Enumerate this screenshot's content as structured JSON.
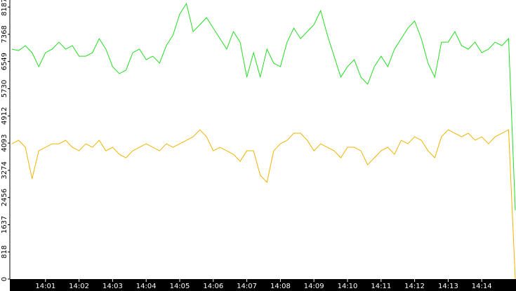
{
  "chart_data": {
    "type": "line",
    "categories": [
      null,
      null,
      null,
      null,
      null,
      "14:01",
      null,
      null,
      null,
      null,
      "14:02",
      null,
      null,
      null,
      null,
      "14:03",
      null,
      null,
      null,
      null,
      "14:04",
      null,
      null,
      null,
      null,
      "14:05",
      null,
      null,
      null,
      null,
      "14:06",
      null,
      null,
      null,
      null,
      "14:07",
      null,
      null,
      null,
      null,
      "14:08",
      null,
      null,
      null,
      null,
      "14:09",
      null,
      null,
      null,
      null,
      "14:10",
      null,
      null,
      null,
      null,
      "14:11",
      null,
      null,
      null,
      null,
      "14:12",
      null,
      null,
      null,
      null,
      "14:13",
      null,
      null,
      null,
      null,
      "14:14",
      null,
      null,
      null,
      null,
      null
    ],
    "series": [
      {
        "color": "#22dd22",
        "values": [
          6921,
          6879,
          7026,
          6815,
          6394,
          6815,
          6921,
          7132,
          6921,
          7026,
          6710,
          6710,
          6815,
          7237,
          6921,
          6394,
          6183,
          6288,
          6815,
          6921,
          6604,
          6710,
          6499,
          7026,
          7343,
          7976,
          8292,
          7448,
          7659,
          7870,
          7554,
          7237,
          6921,
          7448,
          7132,
          6077,
          6815,
          6077,
          6921,
          6499,
          6394,
          7132,
          7554,
          7237,
          7448,
          7659,
          8081,
          7343,
          6710,
          6077,
          6394,
          6604,
          6077,
          5866,
          6394,
          6710,
          6394,
          6921,
          7237,
          7554,
          7765,
          7237,
          6499,
          6077,
          7132,
          7132,
          7448,
          7026,
          6921,
          7132,
          6815,
          6921,
          7132,
          7026,
          7237,
          2068
        ]
      },
      {
        "color": "#f0b400",
        "values": [
          4072,
          4178,
          3967,
          3017,
          3861,
          3967,
          4072,
          4072,
          4178,
          3967,
          3861,
          4072,
          3967,
          4178,
          3861,
          3967,
          3756,
          3651,
          3861,
          3967,
          4072,
          3967,
          3861,
          4072,
          3967,
          4072,
          4178,
          4283,
          4494,
          4283,
          3861,
          3967,
          3861,
          3756,
          3545,
          3861,
          3861,
          3123,
          2912,
          3861,
          4072,
          4178,
          4389,
          4389,
          4178,
          3861,
          4072,
          3967,
          3861,
          3651,
          3967,
          3967,
          3861,
          3439,
          3651,
          3861,
          3967,
          3756,
          4178,
          4072,
          4283,
          4178,
          3861,
          3651,
          4283,
          4494,
          4389,
          4283,
          4389,
          4178,
          4283,
          4072,
          4283,
          4389,
          4494,
          0
        ]
      }
    ],
    "ylim": [
      0,
      8400
    ],
    "yticks": [
      0,
      818,
      1637,
      2456,
      3274,
      4093,
      4912,
      5730,
      6549,
      7368,
      8187
    ]
  }
}
